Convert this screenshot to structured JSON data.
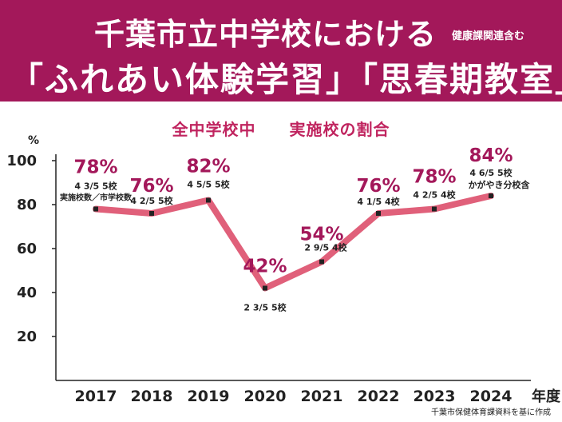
{
  "header": {
    "title_line1": "千葉市立中学校における",
    "title_line1_note": "健康課関連含む",
    "title_line2": "「ふれあい体験学習」「思春期教室」"
  },
  "chart_subtitle_left": "全中学校中",
  "chart_subtitle_right": "実施校の割合",
  "source_note": "千葉市保健体育課資料を基に作成",
  "colors": {
    "banner": "#a3185a",
    "line": "#e0607a",
    "pct_label": "#a3185a",
    "subtitle": "#c0245f"
  },
  "chart_data": {
    "type": "line",
    "title": "全中学校中　実施校の割合",
    "ylabel": "%",
    "xlabel_suffix": "年度",
    "ylim": [
      0,
      100
    ],
    "yticks": [
      20,
      40,
      60,
      80,
      100
    ],
    "grid": false,
    "categories": [
      "2017",
      "2018",
      "2019",
      "2020",
      "2021",
      "2022",
      "2023",
      "2024"
    ],
    "series": [
      {
        "values": [
          78,
          76,
          82,
          42,
          54,
          76,
          78,
          84
        ],
        "pct_labels": [
          "78%",
          "76%",
          "82%",
          "42%",
          "54%",
          "76%",
          "78%",
          "84%"
        ],
        "count_labels": [
          "4 3/5 5校",
          "4 2/5 5校",
          "4 5/5 5校",
          "2 3/5 5校",
          "2 9/5 4校",
          "4 1/5 4校",
          "4 2/5 4校",
          "4 6/5 5校"
        ]
      }
    ],
    "annotations": [
      "実施校数／市学校数",
      "かがやき分校含"
    ]
  }
}
